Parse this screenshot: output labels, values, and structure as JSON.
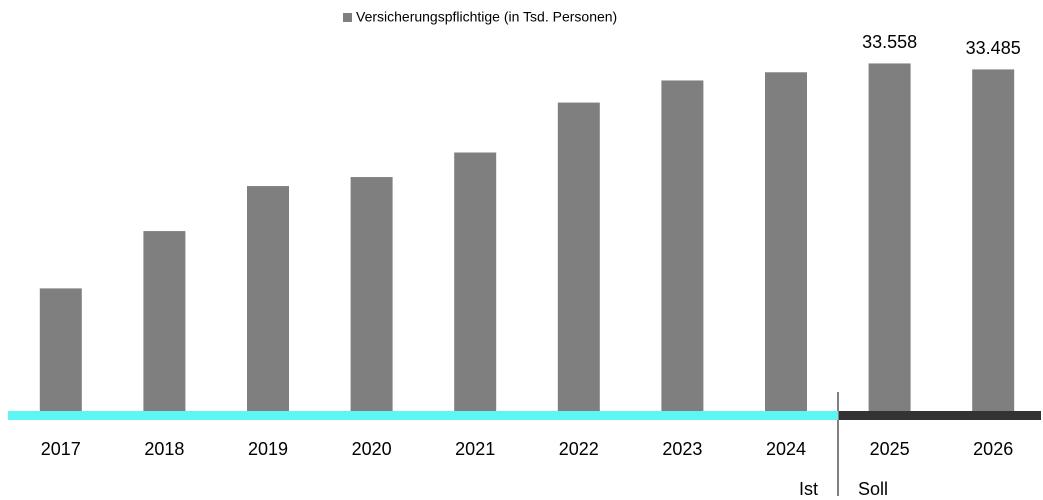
{
  "chart_data": {
    "type": "bar",
    "legend": "Versicherungspflichtige (in Tsd. Personen)",
    "categories": [
      "2017",
      "2018",
      "2019",
      "2020",
      "2021",
      "2022",
      "2023",
      "2024",
      "2025",
      "2026"
    ],
    "values": [
      30810,
      31510,
      32060,
      32170,
      32470,
      33080,
      33350,
      33450,
      33558,
      33485
    ],
    "value_labels": [
      null,
      null,
      null,
      null,
      null,
      null,
      null,
      null,
      "33.558",
      "33.485"
    ],
    "color": "#7f7f7f",
    "ylim": [
      29300,
      33600
    ],
    "annotations": [
      "Ist",
      "Soll"
    ],
    "period_colors": [
      "#5ef5f5",
      "#333333"
    ]
  }
}
